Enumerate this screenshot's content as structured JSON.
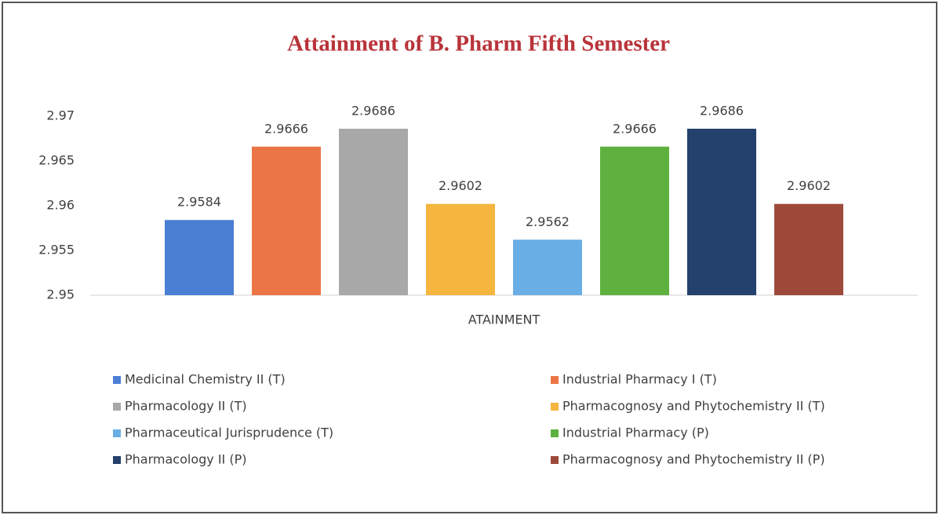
{
  "chart_data": {
    "type": "bar",
    "title": "Attainment of B. Pharm Fifth Semester",
    "categories": [
      "ATAINMENT"
    ],
    "series": [
      {
        "name": "Medicinal Chemistry II (T)",
        "color": "#4a7fd4",
        "values": [
          2.9584
        ]
      },
      {
        "name": "Industrial Pharmacy I (T)",
        "color": "#ec7545",
        "values": [
          2.9666
        ]
      },
      {
        "name": "Pharmacology II (T)",
        "color": "#a8a8a8",
        "values": [
          2.9686
        ]
      },
      {
        "name": "Pharmacognosy and Phytochemistry II (T)",
        "color": "#f5b53f",
        "values": [
          2.9602
        ]
      },
      {
        "name": "Pharmaceutical Jurisprudence (T)",
        "color": "#6aaee6",
        "values": [
          2.9562
        ]
      },
      {
        "name": "Industrial Pharmacy (P)",
        "color": "#5eb13e",
        "values": [
          2.9666
        ]
      },
      {
        "name": "Pharmacology II (P)",
        "color": "#24406c",
        "values": [
          2.9686
        ]
      },
      {
        "name": "Pharmacognosy and Phytochemistry II (P)",
        "color": "#9e4a3a",
        "values": [
          2.9602
        ]
      }
    ],
    "ylim": [
      2.95,
      2.97
    ],
    "yticks": [
      2.95,
      2.955,
      2.96,
      2.965,
      2.97
    ],
    "grid": false,
    "legend": "bottom"
  }
}
